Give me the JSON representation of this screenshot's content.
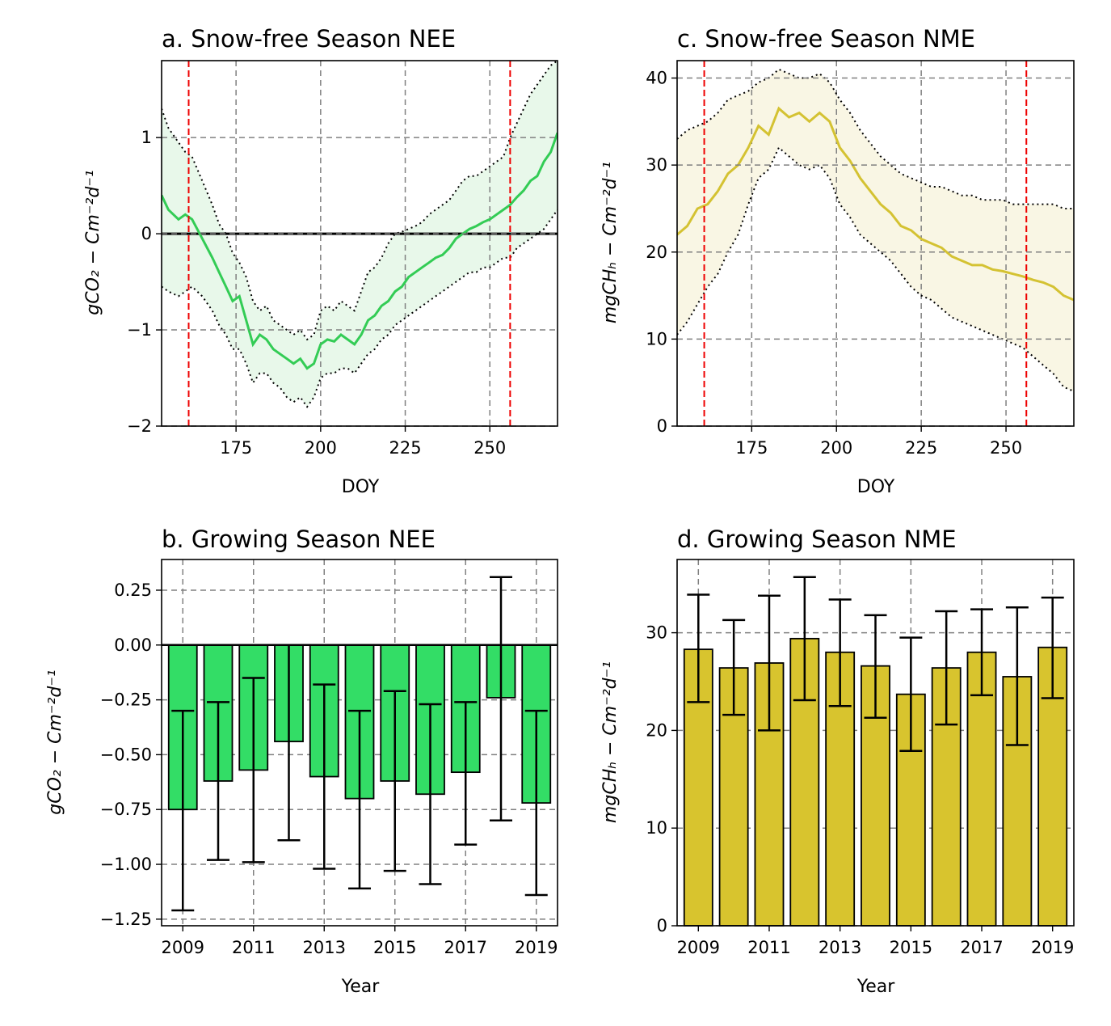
{
  "chart_data": [
    {
      "id": "a",
      "type": "line",
      "title": "a. Snow-free Season NEE",
      "xlabel": "DOY",
      "ylabel": "gCO₂ − Cm⁻²d⁻¹",
      "xlim": [
        153,
        270
      ],
      "ylim": [
        -2,
        1.8
      ],
      "xticks": [
        175,
        200,
        225,
        250
      ],
      "yticks": [
        -2,
        -1,
        0,
        1
      ],
      "ytick_labels": [
        "−2",
        "−1",
        "0",
        "1"
      ],
      "grid": true,
      "zero_line": 0,
      "vlines": [
        161,
        256
      ],
      "colors": {
        "line": "#33cc55",
        "fill": "#e8f8ea",
        "vline": "#ee0000",
        "bounds": "#000000"
      },
      "doy": [
        153,
        155,
        158,
        160,
        162,
        165,
        168,
        170,
        172,
        174,
        176,
        178,
        180,
        182,
        184,
        186,
        188,
        190,
        192,
        194,
        196,
        198,
        200,
        202,
        204,
        206,
        208,
        210,
        212,
        214,
        216,
        218,
        220,
        222,
        224,
        226,
        228,
        230,
        232,
        234,
        236,
        238,
        240,
        242,
        244,
        246,
        248,
        250,
        252,
        254,
        256,
        258,
        260,
        262,
        264,
        266,
        268,
        270
      ],
      "series": [
        {
          "name": "mean",
          "style": "solid",
          "values": [
            0.4,
            0.25,
            0.15,
            0.2,
            0.15,
            -0.05,
            -0.25,
            -0.4,
            -0.55,
            -0.7,
            -0.65,
            -0.9,
            -1.15,
            -1.05,
            -1.1,
            -1.2,
            -1.25,
            -1.3,
            -1.35,
            -1.3,
            -1.4,
            -1.35,
            -1.15,
            -1.1,
            -1.12,
            -1.05,
            -1.1,
            -1.15,
            -1.05,
            -0.9,
            -0.85,
            -0.75,
            -0.7,
            -0.6,
            -0.55,
            -0.45,
            -0.4,
            -0.35,
            -0.3,
            -0.25,
            -0.22,
            -0.15,
            -0.05,
            0.0,
            0.05,
            0.08,
            0.12,
            0.15,
            0.2,
            0.25,
            0.3,
            0.38,
            0.45,
            0.55,
            0.6,
            0.75,
            0.85,
            1.05
          ]
        },
        {
          "name": "upper",
          "style": "dotted",
          "values": [
            1.3,
            1.1,
            0.95,
            0.85,
            0.8,
            0.55,
            0.3,
            0.1,
            0.0,
            -0.2,
            -0.3,
            -0.45,
            -0.7,
            -0.8,
            -0.75,
            -0.9,
            -0.95,
            -1.0,
            -1.05,
            -1.0,
            -1.1,
            -1.05,
            -0.8,
            -0.75,
            -0.8,
            -0.7,
            -0.75,
            -0.8,
            -0.6,
            -0.4,
            -0.35,
            -0.25,
            -0.1,
            0.0,
            0.02,
            0.05,
            0.08,
            0.12,
            0.2,
            0.25,
            0.3,
            0.35,
            0.45,
            0.55,
            0.6,
            0.6,
            0.65,
            0.7,
            0.75,
            0.8,
            1.0,
            1.15,
            1.3,
            1.45,
            1.55,
            1.65,
            1.75,
            1.8
          ]
        },
        {
          "name": "lower",
          "style": "dotted",
          "values": [
            -0.55,
            -0.6,
            -0.65,
            -0.6,
            -0.55,
            -0.65,
            -0.8,
            -0.95,
            -1.05,
            -1.2,
            -1.2,
            -1.35,
            -1.55,
            -1.45,
            -1.45,
            -1.55,
            -1.6,
            -1.7,
            -1.75,
            -1.7,
            -1.8,
            -1.7,
            -1.5,
            -1.45,
            -1.45,
            -1.4,
            -1.4,
            -1.45,
            -1.35,
            -1.25,
            -1.2,
            -1.1,
            -1.05,
            -0.95,
            -0.9,
            -0.85,
            -0.8,
            -0.75,
            -0.7,
            -0.65,
            -0.6,
            -0.55,
            -0.5,
            -0.45,
            -0.4,
            -0.4,
            -0.35,
            -0.35,
            -0.3,
            -0.25,
            -0.25,
            -0.15,
            -0.1,
            -0.05,
            0.0,
            0.05,
            0.15,
            0.25
          ]
        }
      ]
    },
    {
      "id": "c",
      "type": "line",
      "title": "c. Snow-free Season NME",
      "xlabel": "DOY",
      "ylabel": "mgCHₕ − Cm⁻²d⁻¹",
      "xlim": [
        153,
        270
      ],
      "ylim": [
        0,
        42
      ],
      "xticks": [
        175,
        200,
        225,
        250
      ],
      "yticks": [
        0,
        10,
        20,
        30,
        40
      ],
      "ytick_labels": [
        "0",
        "10",
        "20",
        "30",
        "40"
      ],
      "grid": true,
      "vlines": [
        161,
        256
      ],
      "colors": {
        "line": "#d4c232",
        "fill": "#f9f6e4",
        "vline": "#ee0000",
        "bounds": "#000000"
      },
      "doy": [
        153,
        156,
        159,
        162,
        165,
        168,
        171,
        174,
        177,
        180,
        183,
        186,
        189,
        192,
        195,
        198,
        201,
        204,
        207,
        210,
        213,
        216,
        219,
        222,
        225,
        228,
        231,
        234,
        237,
        240,
        243,
        246,
        249,
        252,
        255,
        258,
        261,
        264,
        267,
        270
      ],
      "series": [
        {
          "name": "mean",
          "style": "solid",
          "values": [
            22,
            23,
            25,
            25.5,
            27,
            29,
            30,
            32,
            34.5,
            33.5,
            36.5,
            35.5,
            36,
            35,
            36,
            35,
            32,
            30.5,
            28.5,
            27,
            25.5,
            24.5,
            23,
            22.5,
            21.5,
            21,
            20.5,
            19.5,
            19,
            18.5,
            18.5,
            18,
            17.8,
            17.5,
            17.2,
            16.8,
            16.5,
            16,
            15,
            14.5
          ]
        },
        {
          "name": "upper",
          "style": "dotted",
          "values": [
            33,
            34,
            34.5,
            35,
            36,
            37.5,
            38,
            38.5,
            39.5,
            40,
            41,
            40.5,
            40,
            40,
            40.5,
            39.5,
            37.5,
            36,
            34,
            32.5,
            31,
            30,
            29,
            28.5,
            28,
            27.5,
            27.5,
            27,
            26.5,
            26.5,
            26,
            26,
            26,
            25.5,
            25.5,
            25.5,
            25.5,
            25.5,
            25,
            25
          ]
        },
        {
          "name": "lower",
          "style": "dotted",
          "values": [
            10.5,
            12,
            14,
            16,
            17.5,
            20,
            22,
            25.5,
            28.5,
            29.5,
            32,
            31,
            30,
            29.5,
            30,
            28.5,
            25.5,
            24,
            22,
            21,
            20,
            19,
            17.5,
            16,
            15,
            14.5,
            13.5,
            12.5,
            12,
            11.5,
            11,
            10.5,
            10,
            9.5,
            9,
            8,
            7,
            6,
            4.5,
            4
          ]
        }
      ]
    },
    {
      "id": "b",
      "type": "bar",
      "title": "b. Growing Season NEE",
      "xlabel": "Year",
      "ylabel": "gCO₂ − Cm⁻²d⁻¹",
      "ylim": [
        -1.28,
        0.39
      ],
      "yticks": [
        -1.25,
        -1.0,
        -0.75,
        -0.5,
        -0.25,
        0.0,
        0.25
      ],
      "ytick_labels": [
        "−1.25",
        "−1.00",
        "−0.75",
        "−0.50",
        "−0.25",
        "0.00",
        "0.25"
      ],
      "grid": true,
      "zero_line": 0,
      "categories": [
        "2009",
        "2010",
        "2011",
        "2012",
        "2013",
        "2014",
        "2015",
        "2016",
        "2017",
        "2018",
        "2019"
      ],
      "xtick_labels": [
        "2009",
        "2011",
        "2013",
        "2015",
        "2017",
        "2019"
      ],
      "values": [
        -0.75,
        -0.62,
        -0.57,
        -0.44,
        -0.6,
        -0.7,
        -0.62,
        -0.68,
        -0.58,
        -0.24,
        -0.72
      ],
      "error_low": [
        -1.21,
        -0.98,
        -0.99,
        -0.89,
        -1.02,
        -1.11,
        -1.03,
        -1.09,
        -0.91,
        -0.8,
        -1.14
      ],
      "error_high": [
        -0.3,
        -0.26,
        -0.15,
        0.0,
        -0.18,
        -0.3,
        -0.21,
        -0.27,
        -0.26,
        0.31,
        -0.3
      ],
      "colors": {
        "bar": "#33dd66",
        "edge": "#000000"
      }
    },
    {
      "id": "d",
      "type": "bar",
      "title": "d. Growing Season NME",
      "xlabel": "Year",
      "ylabel": "mgCHₕ − Cm⁻²d⁻¹",
      "ylim": [
        0,
        37.5
      ],
      "yticks": [
        0,
        10,
        20,
        30
      ],
      "ytick_labels": [
        "0",
        "10",
        "20",
        "30"
      ],
      "grid": true,
      "categories": [
        "2009",
        "2010",
        "2011",
        "2012",
        "2013",
        "2014",
        "2015",
        "2016",
        "2017",
        "2018",
        "2019"
      ],
      "xtick_labels": [
        "2009",
        "2011",
        "2013",
        "2015",
        "2017",
        "2019"
      ],
      "values": [
        28.3,
        26.4,
        26.9,
        29.4,
        28.0,
        26.6,
        23.7,
        26.4,
        28.0,
        25.5,
        28.5
      ],
      "error_low": [
        22.9,
        21.6,
        20.0,
        23.1,
        22.5,
        21.3,
        17.9,
        20.6,
        23.6,
        18.5,
        23.3
      ],
      "error_high": [
        33.9,
        31.3,
        33.8,
        35.7,
        33.4,
        31.8,
        29.5,
        32.2,
        32.4,
        32.6,
        33.6
      ],
      "colors": {
        "bar": "#d8c42e",
        "edge": "#000000"
      }
    }
  ]
}
